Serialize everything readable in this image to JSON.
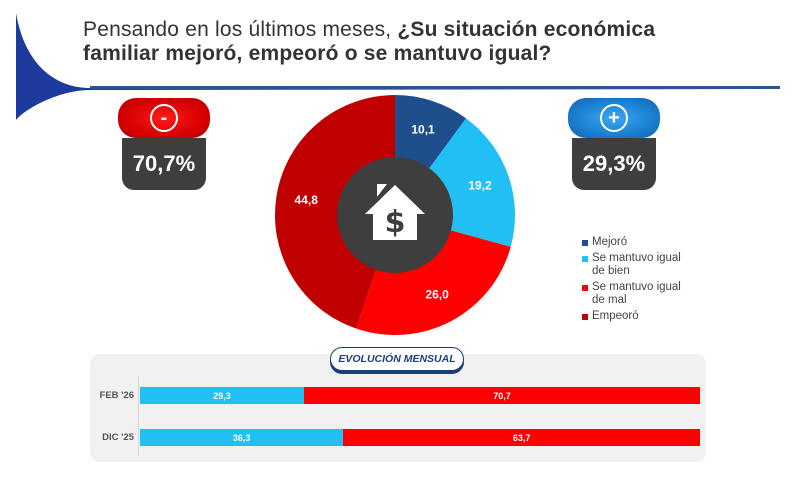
{
  "header": {
    "title_light": "Pensando en los últimos meses, ",
    "title_bold_1": "¿Su situación económica",
    "title_bold_2": "familiar mejoró, empeoró o se mantuvo igual?"
  },
  "summary": {
    "negative": {
      "sign": "-",
      "value": "70,7%",
      "color": "#e00000"
    },
    "positive": {
      "sign": "+",
      "value": "29,3%",
      "color": "#1a7fd0"
    }
  },
  "center_icon": "house-dollar-icon",
  "chart_data": [
    {
      "type": "pie",
      "variant": "donut",
      "title": "",
      "categories": [
        "Mejoró",
        "Se mantuvo igual de bien",
        "Se mantuvo igual de mal",
        "Empeoró"
      ],
      "values": [
        10.1,
        19.2,
        26.0,
        44.8
      ],
      "labels": [
        "10,1",
        "19,2",
        "26,0",
        "44,8"
      ],
      "colors": [
        "#1f4e8c",
        "#22bff5",
        "#ff0000",
        "#c00000"
      ],
      "legend_position": "right",
      "legend": [
        {
          "label_1": "Mejoró",
          "label_2": "",
          "color": "#1f4e8c"
        },
        {
          "label_1": "Se mantuvo igual",
          "label_2": "de bien",
          "color": "#22bff5"
        },
        {
          "label_1": "Se mantuvo igual",
          "label_2": "de mal",
          "color": "#ff0000"
        },
        {
          "label_1": "Empeoró",
          "label_2": "",
          "color": "#c00000"
        }
      ]
    },
    {
      "type": "bar",
      "orientation": "horizontal",
      "stacked": true,
      "title": "EVOLUCIÓN MENSUAL",
      "categories": [
        "FEB '26",
        "DIC '25"
      ],
      "series": [
        {
          "name": "Positivo",
          "values": [
            29.3,
            36.3
          ],
          "labels": [
            "29,3",
            "36,3"
          ],
          "color": "#22bff5"
        },
        {
          "name": "Negativo",
          "values": [
            70.7,
            63.7
          ],
          "labels": [
            "70,7",
            "63,7"
          ],
          "color": "#ff0000"
        }
      ],
      "xlim": [
        0,
        100
      ]
    }
  ]
}
